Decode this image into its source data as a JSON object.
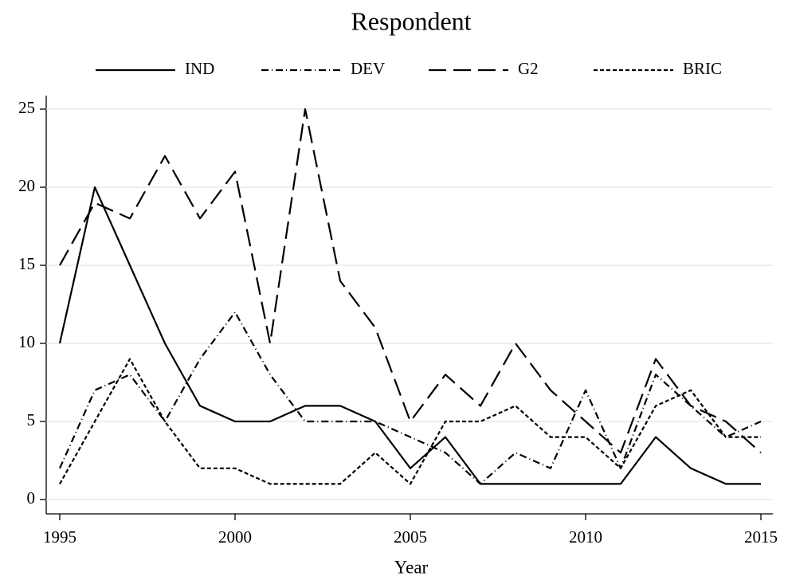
{
  "chart_data": {
    "type": "line",
    "title": "Respondent",
    "x_label": "Year",
    "x": [
      1995,
      1996,
      1997,
      1998,
      1999,
      2000,
      2001,
      2002,
      2003,
      2004,
      2005,
      2006,
      2007,
      2008,
      2009,
      2010,
      2011,
      2012,
      2013,
      2014,
      2015
    ],
    "series": [
      {
        "name": "IND",
        "color": "#000000",
        "dash": "solid",
        "values": [
          10,
          20,
          15,
          10,
          6,
          5,
          5,
          6,
          6,
          5,
          2,
          4,
          1,
          1,
          1,
          1,
          1,
          4,
          2,
          1,
          1
        ]
      },
      {
        "name": "DEV",
        "color": "#000000",
        "dash": "dashdot",
        "values": [
          2,
          7,
          8,
          5,
          9,
          12,
          8,
          5,
          5,
          5,
          4,
          3,
          1,
          3,
          2,
          7,
          2,
          8,
          6,
          4,
          5
        ]
      },
      {
        "name": "G2",
        "color": "#000000",
        "dash": "longdash",
        "values": [
          15,
          19,
          18,
          22,
          18,
          21,
          10,
          25,
          14,
          11,
          5,
          8,
          6,
          10,
          7,
          5,
          3,
          9,
          6,
          5,
          3
        ]
      },
      {
        "name": "BRIC",
        "color": "#000000",
        "dash": "dotted",
        "values": [
          1,
          5,
          9,
          5,
          2,
          2,
          1,
          1,
          1,
          3,
          1,
          5,
          5,
          6,
          4,
          4,
          2,
          6,
          7,
          4,
          4
        ]
      }
    ],
    "xlim": [
      1995,
      2015
    ],
    "xticks": [
      1995,
      2000,
      2005,
      2010,
      2015
    ],
    "ylim": [
      0,
      25
    ],
    "yticks": [
      0,
      5,
      10,
      15,
      20,
      25
    ],
    "grid": true,
    "legend": "top"
  }
}
